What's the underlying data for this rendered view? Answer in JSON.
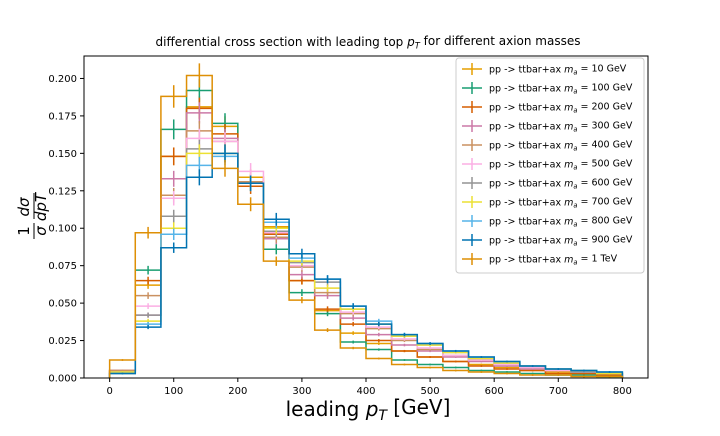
{
  "chart_data": {
    "type": "line",
    "title": "differential cross section with leading top p_T for different axion masses",
    "xlabel": "leading p_T [GeV]",
    "ylabel": "1/σ dσ/dp_T",
    "xlim": [
      -40,
      840
    ],
    "ylim": [
      0,
      0.215
    ],
    "xticks": [
      0,
      100,
      200,
      300,
      400,
      500,
      600,
      700,
      800
    ],
    "yticks": [
      0.0,
      0.025,
      0.05,
      0.075,
      0.1,
      0.125,
      0.15,
      0.175,
      0.2
    ],
    "ytick_labels": [
      "0.000",
      "0.025",
      "0.050",
      "0.075",
      "0.100",
      "0.125",
      "0.150",
      "0.175",
      "0.200"
    ],
    "bin_edges": [
      0,
      40,
      80,
      120,
      160,
      200,
      240,
      280,
      320,
      360,
      400,
      440,
      480,
      520,
      560,
      600,
      640,
      680,
      720,
      760,
      800
    ],
    "legend_position": "top-right",
    "grid": false,
    "series": [
      {
        "name": "pp -> ttbar+ax",
        "mass_label": "m_a = 10 GeV",
        "color": "#e69f00",
        "values": [
          0.003,
          0.062,
          0.148,
          0.181,
          0.168,
          0.134,
          0.101,
          0.065,
          0.045,
          0.03,
          0.023,
          0.018,
          0.014,
          0.011,
          0.009,
          0.007,
          0.005,
          0.004,
          0.003,
          0.002
        ]
      },
      {
        "name": "pp -> ttbar+ax",
        "mass_label": "m_a = 100 GeV",
        "color": "#199e72",
        "values": [
          0.004,
          0.072,
          0.166,
          0.192,
          0.17,
          0.13,
          0.086,
          0.057,
          0.043,
          0.024,
          0.019,
          0.012,
          0.009,
          0.007,
          0.005,
          0.004,
          0.003,
          0.002,
          0.002,
          0.001
        ]
      },
      {
        "name": "pp -> ttbar+ax",
        "mass_label": "m_a = 200 GeV",
        "color": "#d55e00",
        "values": [
          0.005,
          0.065,
          0.148,
          0.18,
          0.163,
          0.128,
          0.096,
          0.065,
          0.046,
          0.036,
          0.025,
          0.018,
          0.014,
          0.011,
          0.008,
          0.006,
          0.005,
          0.003,
          0.003,
          0.002
        ]
      },
      {
        "name": "pp -> ttbar+ax",
        "mass_label": "m_a = 300 GeV",
        "color": "#cc79a7",
        "values": [
          0.005,
          0.042,
          0.133,
          0.177,
          0.16,
          0.13,
          0.093,
          0.069,
          0.055,
          0.04,
          0.029,
          0.022,
          0.018,
          0.014,
          0.011,
          0.008,
          0.006,
          0.005,
          0.004,
          0.003
        ]
      },
      {
        "name": "pp -> ttbar+ax",
        "mass_label": "m_a = 400 GeV",
        "color": "#ca9161",
        "values": [
          0.005,
          0.055,
          0.122,
          0.165,
          0.158,
          0.131,
          0.094,
          0.074,
          0.057,
          0.043,
          0.033,
          0.025,
          0.019,
          0.015,
          0.012,
          0.009,
          0.007,
          0.005,
          0.004,
          0.003
        ]
      },
      {
        "name": "pp -> ttbar+ax",
        "mass_label": "m_a = 500 GeV",
        "color": "#fbafe4",
        "values": [
          0.004,
          0.048,
          0.12,
          0.16,
          0.158,
          0.138,
          0.097,
          0.075,
          0.06,
          0.044,
          0.034,
          0.026,
          0.02,
          0.015,
          0.012,
          0.009,
          0.007,
          0.005,
          0.004,
          0.003
        ]
      },
      {
        "name": "pp -> ttbar+ax",
        "mass_label": "m_a = 600 GeV",
        "color": "#949494",
        "values": [
          0.004,
          0.042,
          0.108,
          0.153,
          0.15,
          0.13,
          0.098,
          0.077,
          0.064,
          0.046,
          0.036,
          0.028,
          0.022,
          0.017,
          0.013,
          0.01,
          0.008,
          0.006,
          0.004,
          0.003
        ]
      },
      {
        "name": "pp -> ttbar+ax",
        "mass_label": "m_a = 700 GeV",
        "color": "#ece133",
        "values": [
          0.004,
          0.038,
          0.1,
          0.15,
          0.15,
          0.13,
          0.1,
          0.078,
          0.06,
          0.046,
          0.036,
          0.028,
          0.022,
          0.017,
          0.013,
          0.01,
          0.008,
          0.006,
          0.005,
          0.003
        ]
      },
      {
        "name": "pp -> ttbar+ax",
        "mass_label": "m_a = 800 GeV",
        "color": "#56b4e9",
        "values": [
          0.003,
          0.036,
          0.096,
          0.142,
          0.148,
          0.13,
          0.104,
          0.08,
          0.066,
          0.048,
          0.038,
          0.029,
          0.023,
          0.018,
          0.014,
          0.011,
          0.008,
          0.006,
          0.005,
          0.004
        ]
      },
      {
        "name": "pp -> ttbar+ax",
        "mass_label": "m_a = 900 GeV",
        "color": "#0173b2",
        "values": [
          0.003,
          0.034,
          0.087,
          0.134,
          0.15,
          0.13,
          0.106,
          0.083,
          0.066,
          0.048,
          0.036,
          0.029,
          0.023,
          0.018,
          0.014,
          0.011,
          0.008,
          0.006,
          0.005,
          0.004
        ]
      },
      {
        "name": "pp -> ttbar+ax",
        "mass_label": "m_a = 1 TeV",
        "color": "#de8f05",
        "values": [
          0.012,
          0.097,
          0.188,
          0.202,
          0.14,
          0.116,
          0.078,
          0.052,
          0.032,
          0.02,
          0.013,
          0.009,
          0.007,
          0.005,
          0.004,
          0.003,
          0.002,
          0.002,
          0.001,
          0.001
        ]
      }
    ]
  }
}
